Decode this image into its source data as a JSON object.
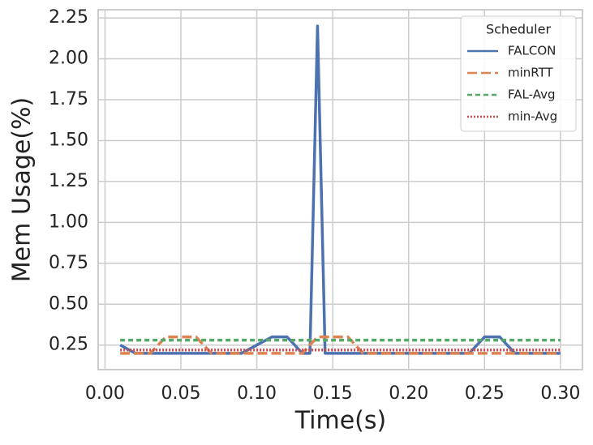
{
  "chart_data": {
    "type": "line",
    "x_label": "Time(s)",
    "y_label": "Mem Usage(%)",
    "legend_title": "Scheduler",
    "legend_position": "upper right",
    "grid": true,
    "x": [
      0.01,
      0.02,
      0.03,
      0.04,
      0.05,
      0.06,
      0.07,
      0.08,
      0.09,
      0.1,
      0.11,
      0.12,
      0.13,
      0.135,
      0.14,
      0.145,
      0.15,
      0.16,
      0.17,
      0.18,
      0.19,
      0.2,
      0.21,
      0.22,
      0.23,
      0.24,
      0.25,
      0.26,
      0.27,
      0.28,
      0.29,
      0.3
    ],
    "series": [
      {
        "name": "FALCON",
        "color": "#4c72b0",
        "dash": "solid",
        "values": [
          0.25,
          0.2,
          0.2,
          0.2,
          0.2,
          0.2,
          0.2,
          0.2,
          0.2,
          0.25,
          0.3,
          0.3,
          0.2,
          0.2,
          2.2,
          0.2,
          0.2,
          0.2,
          0.2,
          0.2,
          0.2,
          0.2,
          0.2,
          0.2,
          0.2,
          0.2,
          0.3,
          0.3,
          0.2,
          0.2,
          0.2,
          0.2
        ]
      },
      {
        "name": "minRTT",
        "color": "#dd8452",
        "dash": "long",
        "values": [
          0.2,
          0.2,
          0.2,
          0.3,
          0.3,
          0.3,
          0.2,
          0.2,
          0.2,
          0.2,
          0.2,
          0.2,
          0.2,
          0.25,
          0.3,
          0.3,
          0.3,
          0.3,
          0.2,
          0.2,
          0.2,
          0.2,
          0.2,
          0.2,
          0.2,
          0.2,
          0.2,
          0.2,
          0.2,
          0.2,
          0.2,
          0.2
        ]
      },
      {
        "name": "FAL-Avg",
        "color": "#55a868",
        "dash": "short",
        "values": [
          0.28,
          0.28,
          0.28,
          0.28,
          0.28,
          0.28,
          0.28,
          0.28,
          0.28,
          0.28,
          0.28,
          0.28,
          0.28,
          0.28,
          0.28,
          0.28,
          0.28,
          0.28,
          0.28,
          0.28,
          0.28,
          0.28,
          0.28,
          0.28,
          0.28,
          0.28,
          0.28,
          0.28,
          0.28,
          0.28,
          0.28,
          0.28
        ]
      },
      {
        "name": "min-Avg",
        "color": "#c44e52",
        "dash": "dotted",
        "values": [
          0.22,
          0.22,
          0.22,
          0.22,
          0.22,
          0.22,
          0.22,
          0.22,
          0.22,
          0.22,
          0.22,
          0.22,
          0.22,
          0.22,
          0.22,
          0.22,
          0.22,
          0.22,
          0.22,
          0.22,
          0.22,
          0.22,
          0.22,
          0.22,
          0.22,
          0.22,
          0.22,
          0.22,
          0.22,
          0.22,
          0.22,
          0.22
        ]
      }
    ],
    "xlim": [
      -0.0045,
      0.3145
    ],
    "xticks": [
      {
        "value": 0,
        "label": "0.00"
      },
      0.05,
      {
        "value": 0.1,
        "label": "0.10"
      },
      0.15,
      {
        "value": 0.2,
        "label": "0.20"
      },
      0.25,
      {
        "value": 0.3,
        "label": "0.30"
      }
    ],
    "ylim": [
      0.1,
      2.3
    ],
    "yticks": [
      0.25,
      {
        "value": 0.5,
        "label": "0.50"
      },
      0.75,
      {
        "value": 1,
        "label": "1.00"
      },
      1.25,
      {
        "value": 1.5,
        "label": "1.50"
      },
      1.75,
      {
        "value": 2,
        "label": "2.00"
      },
      2.25
    ]
  }
}
